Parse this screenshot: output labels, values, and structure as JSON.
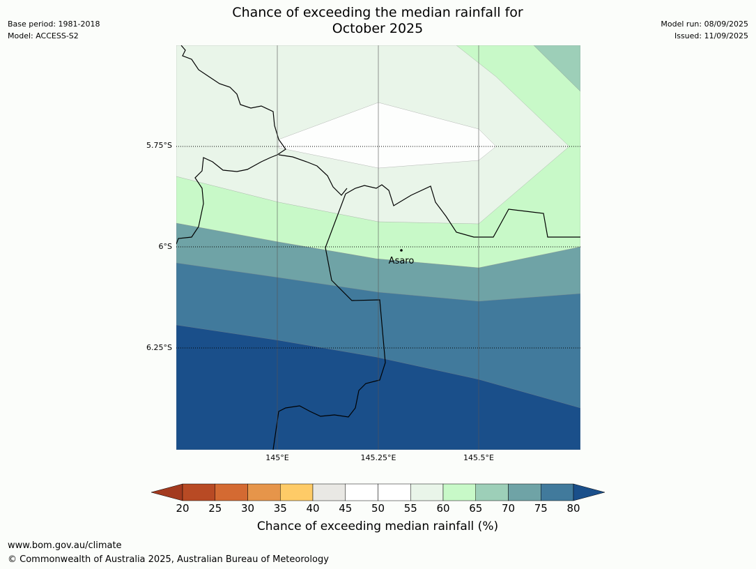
{
  "header": {
    "base_period": "Base period: 1981-2018",
    "model": "Model: ACCESS-S2",
    "model_run": "Model run: 08/09/2025",
    "issued": "Issued: 11/09/2025",
    "title_line1": "Chance of exceeding the median rainfall for",
    "title_line2": "October 2025"
  },
  "map": {
    "lat_labels": [
      "5.75°S",
      "6°S",
      "6.25°S"
    ],
    "lon_labels": [
      "145°E",
      "145.25°E",
      "145.5°E"
    ],
    "place": "Asaro",
    "band_colors": [
      "#1a4f8a",
      "#417a9c",
      "#6fa3a6",
      "#9dcfb8",
      "#c8f9c8",
      "#e9f5e9",
      "#fdfefd"
    ]
  },
  "colorbar": {
    "ticks": [
      "20",
      "25",
      "30",
      "35",
      "40",
      "45",
      "50",
      "55",
      "60",
      "65",
      "70",
      "75",
      "80"
    ],
    "colors": [
      "#a33a1f",
      "#b84a24",
      "#d46a32",
      "#e6954a",
      "#fecb67",
      "#e9e8e4",
      "#ffffff",
      "#ffffff",
      "#e9f5e9",
      "#c8f9c8",
      "#9dcfb8",
      "#6fa3a6",
      "#417a9c",
      "#1a4f8a"
    ],
    "label": "Chance of exceeding median rainfall (%)"
  },
  "footer": {
    "url": "www.bom.gov.au/climate",
    "copyright": "© Commonwealth of Australia 2025, Australian Bureau of Meteorology"
  }
}
